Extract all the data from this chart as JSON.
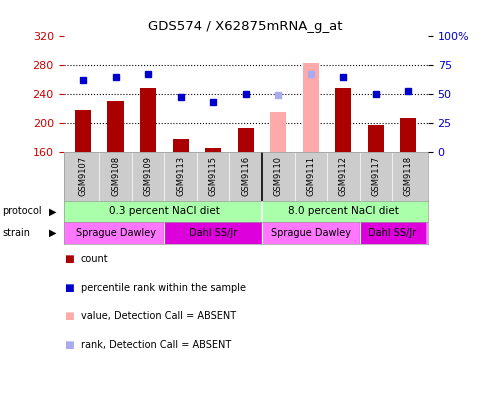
{
  "title": "GDS574 / X62875mRNA_g_at",
  "samples": [
    "GSM9107",
    "GSM9108",
    "GSM9109",
    "GSM9113",
    "GSM9115",
    "GSM9116",
    "GSM9110",
    "GSM9111",
    "GSM9112",
    "GSM9117",
    "GSM9118"
  ],
  "bar_values": [
    218,
    230,
    248,
    178,
    165,
    193,
    215,
    282,
    248,
    197,
    207
  ],
  "bar_colors": [
    "#aa0000",
    "#aa0000",
    "#aa0000",
    "#aa0000",
    "#aa0000",
    "#aa0000",
    "#ffaaaa",
    "#ffaaaa",
    "#aa0000",
    "#aa0000",
    "#aa0000"
  ],
  "rank_values": [
    62,
    64,
    67,
    47,
    43,
    50,
    49,
    67,
    64,
    50,
    52
  ],
  "rank_colors": [
    "#0000cc",
    "#0000cc",
    "#0000cc",
    "#0000cc",
    "#0000cc",
    "#0000cc",
    "#aaaaee",
    "#aaaaee",
    "#0000cc",
    "#0000cc",
    "#0000cc"
  ],
  "ylim_left": [
    160,
    320
  ],
  "ylim_right": [
    0,
    100
  ],
  "yticks_left": [
    160,
    200,
    240,
    280,
    320
  ],
  "yticks_right": [
    0,
    25,
    50,
    75,
    100
  ],
  "protocol_labels": [
    "0.3 percent NaCl diet",
    "8.0 percent NaCl diet"
  ],
  "protocol_color": "#aaffaa",
  "strain_groups": [
    {
      "start": 0,
      "end": 2,
      "label": "Sprague Dawley",
      "color": "#ff77ff"
    },
    {
      "start": 3,
      "end": 5,
      "label": "Dahl SS/Jr",
      "color": "#dd00dd"
    },
    {
      "start": 6,
      "end": 8,
      "label": "Sprague Dawley",
      "color": "#ff77ff"
    },
    {
      "start": 9,
      "end": 10,
      "label": "Dahl SS/Jr",
      "color": "#dd00dd"
    }
  ],
  "gridlines": [
    200,
    240,
    280
  ],
  "left_label_color": "#cc0000",
  "right_label_color": "#0000cc",
  "legend": [
    {
      "color": "#aa0000",
      "label": "count"
    },
    {
      "color": "#0000cc",
      "label": "percentile rank within the sample"
    },
    {
      "color": "#ffaaaa",
      "label": "value, Detection Call = ABSENT"
    },
    {
      "color": "#aaaaee",
      "label": "rank, Detection Call = ABSENT"
    }
  ]
}
